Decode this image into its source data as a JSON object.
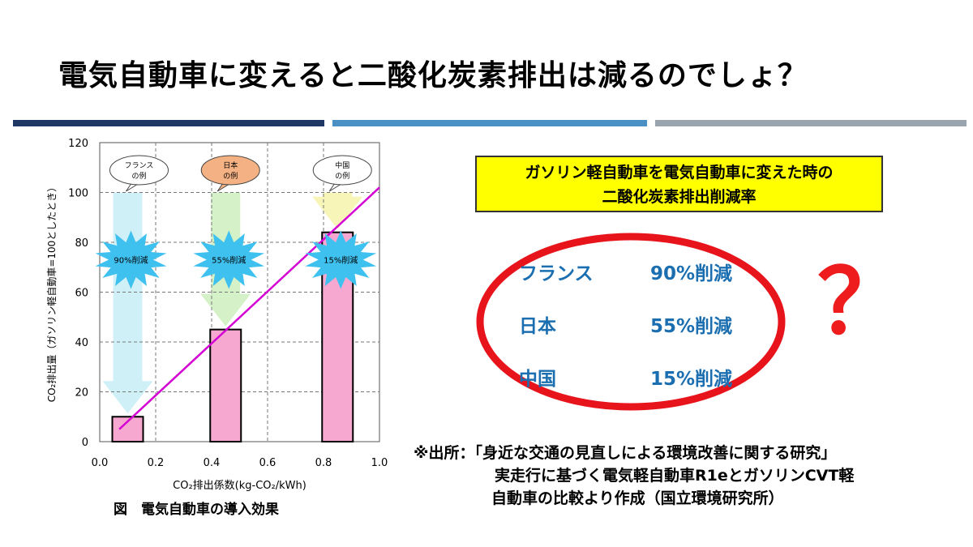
{
  "slide": {
    "title": "電気自動車に変えると二酸化炭素排出は減るのでしょ？",
    "question_mark": "？"
  },
  "callout": {
    "line1": "ガソリン軽自動車を電気自動車に変えた時の",
    "line2": "二酸化炭素排出削減率"
  },
  "results": [
    {
      "country": "フランス",
      "value": "90%削減"
    },
    {
      "country": "日本",
      "value": "55%削減"
    },
    {
      "country": "中国",
      "value": "15%削減"
    }
  ],
  "source": {
    "line1": "※出所：「身近な交通の見直しによる環境改善に関する研究」",
    "line2": "実走行に基づく電気軽自動車R1eとガソリンCVT軽",
    "line3": "自動車の比較より作成（国立環境研究所）"
  },
  "figure_caption": "図　電気自動車の導入効果",
  "colors": {
    "bar": "#f7a8d0",
    "line": "#d400d4",
    "burst": "#3fc1f0",
    "result_text": "#1b6fb0",
    "ellipse": "#e8141c",
    "question": "#ee1c1c",
    "callout_bg": "#ffff00"
  },
  "chart_data": {
    "type": "bar",
    "xlabel": "CO₂排出係数(kg-CO₂/kWh)",
    "ylabel": "CO₂排出量（ガソリン軽自動車=100としたとき）",
    "xlim": [
      0,
      1.0
    ],
    "ylim": [
      0,
      120
    ],
    "xticks": [
      "0.0",
      "0.2",
      "0.4",
      "0.6",
      "0.8",
      "1.0"
    ],
    "yticks": [
      "0",
      "20",
      "40",
      "60",
      "80",
      "100",
      "120"
    ],
    "bars": [
      {
        "x": 0.1,
        "value": 10,
        "speech": [
          "フランス",
          "の例"
        ],
        "burst": "90%削減",
        "arrow_color": "#cdeff8"
      },
      {
        "x": 0.45,
        "value": 45,
        "speech": [
          "日本",
          "の例"
        ],
        "burst": "55%削減",
        "arrow_color": "#d2f0c4"
      },
      {
        "x": 0.85,
        "value": 84,
        "speech": [
          "中国",
          "の例"
        ],
        "burst": "15%削減",
        "arrow_color": "#f8f4b4"
      }
    ],
    "trend_line": [
      [
        0.07,
        5
      ],
      [
        1.0,
        102
      ]
    ],
    "reference_line": 100,
    "grid": true
  }
}
